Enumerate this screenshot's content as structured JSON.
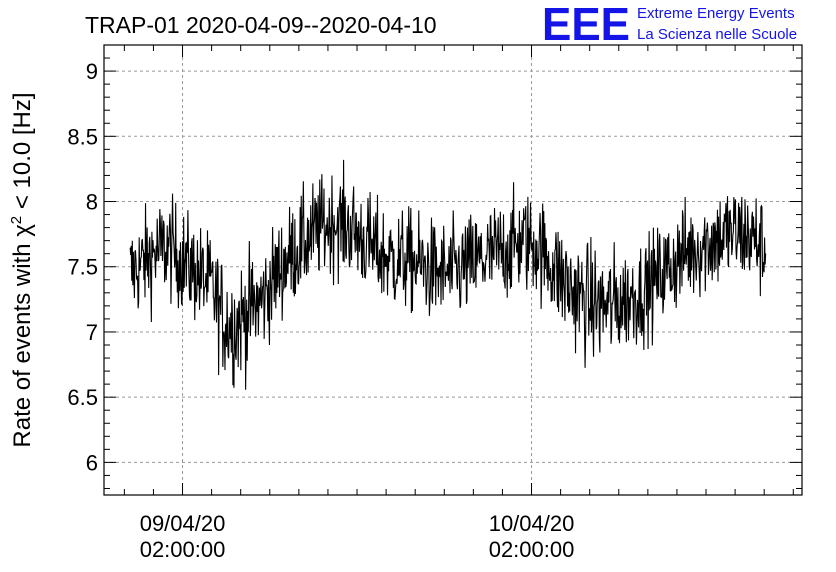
{
  "chart_data": {
    "type": "line",
    "title": "TRAP-01 2020-04-09--2020-04-10",
    "ylabel_main": "Rate of events with ",
    "ylabel_chi": "χ",
    "ylabel_sup": "2",
    "ylabel_rest": " < 10.0 [Hz]",
    "ylim": [
      5.75,
      9.2
    ],
    "yticks": [
      6,
      6.5,
      7,
      7.5,
      8,
      8.5,
      9
    ],
    "ytick_labels": [
      "6",
      "6.5",
      "7",
      "7.5",
      "8",
      "8.5",
      "9"
    ],
    "xlim_hours": [
      -5.4,
      42.6
    ],
    "xticks": [
      {
        "hours": 0,
        "label_date": "09/04/20",
        "label_time": "02:00:00"
      },
      {
        "hours": 24,
        "label_date": "10/04/20",
        "label_time": "02:00:00"
      }
    ],
    "grid": true,
    "color": "#000000",
    "series": [
      {
        "x": [
          -3.6,
          -3.0,
          -2.0,
          -1.0,
          0.0,
          1.0,
          2.0,
          2.8,
          3.6,
          4.5,
          5.5,
          6.5,
          7.5,
          8.5,
          9.5,
          10.5,
          11.5,
          12.5,
          13.5,
          14.5,
          15.5,
          16.5,
          17.5,
          18.5,
          19.5,
          20.5,
          21.5,
          22.5,
          23.5,
          24.5,
          25.5,
          26.5,
          27.5,
          28.5,
          29.5,
          30.5,
          31.5,
          32.5,
          33.5,
          34.5,
          35.5,
          36.5,
          37.5,
          38.5,
          39.5,
          40.1
        ],
        "y": [
          7.45,
          7.5,
          7.6,
          7.65,
          7.55,
          7.45,
          7.35,
          7.1,
          7.05,
          7.15,
          7.25,
          7.45,
          7.6,
          7.7,
          7.8,
          7.85,
          7.8,
          7.7,
          7.6,
          7.55,
          7.55,
          7.5,
          7.45,
          7.45,
          7.5,
          7.55,
          7.6,
          7.65,
          7.7,
          7.65,
          7.5,
          7.35,
          7.25,
          7.2,
          7.2,
          7.25,
          7.3,
          7.4,
          7.5,
          7.6,
          7.65,
          7.7,
          7.75,
          7.75,
          7.7,
          7.6
        ],
        "spread": [
          0.35,
          0.35,
          0.35,
          0.35,
          0.35,
          0.35,
          0.35,
          0.4,
          0.4,
          0.4,
          0.35,
          0.35,
          0.35,
          0.35,
          0.35,
          0.35,
          0.35,
          0.35,
          0.35,
          0.35,
          0.35,
          0.35,
          0.35,
          0.35,
          0.35,
          0.35,
          0.35,
          0.35,
          0.35,
          0.35,
          0.35,
          0.4,
          0.4,
          0.4,
          0.4,
          0.35,
          0.35,
          0.35,
          0.35,
          0.35,
          0.35,
          0.35,
          0.35,
          0.35,
          0.35,
          0.35
        ]
      }
    ]
  },
  "logo": {
    "letters": "EEE",
    "line1": "Extreme Energy Events",
    "line2": "La Scienza nelle Scuole",
    "color": "#1414e6"
  }
}
